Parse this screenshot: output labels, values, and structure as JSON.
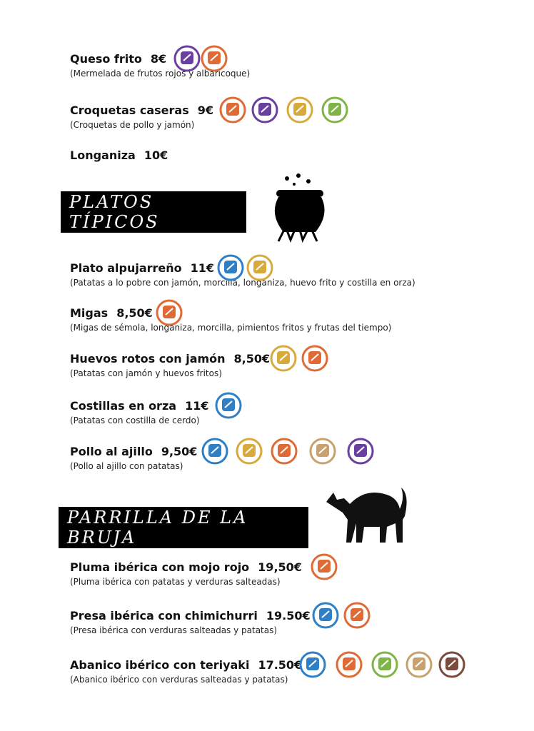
{
  "menu_top": [
    {
      "name": "Queso frito",
      "price": "8€",
      "description": "(Mermelada de frutos rojos y albaricoque)"
    },
    {
      "name": "Croquetas caseras",
      "price": "9€",
      "description": "(Croquetas de pollo y jamón)"
    },
    {
      "name": "Longaniza",
      "price": "10€"
    }
  ],
  "sections": [
    {
      "title": "PLATOS TÍPICOS",
      "items": [
        {
          "name": "Plato alpujarreño",
          "price": "11€",
          "description": "(Patatas a lo pobre con jamón, morcilla, longaniza, huevo frito y costilla en orza)"
        },
        {
          "name": "Migas",
          "price": "8,50€",
          "description": "(Migas de sémola, longaniza, morcilla, pimientos fritos y frutas del tiempo)"
        },
        {
          "name": "Huevos rotos con jamón",
          "price": "8,50€",
          "description": "(Patatas con jamón y huevos fritos)"
        },
        {
          "name": "Costillas en orza",
          "price": "11€",
          "description": "(Patatas con costilla de cerdo)"
        },
        {
          "name": "Pollo al ajillo",
          "price": "9,50€",
          "description": "(Pollo al ajillo con patatas)"
        }
      ]
    },
    {
      "title": "PARRILLA DE LA BRUJA",
      "items": [
        {
          "name": "Pluma ibérica con mojo rojo",
          "price": "19,50€",
          "description": "(Pluma ibérica con patatas y verduras salteadas)"
        },
        {
          "name": "Presa ibérica con chimichurri",
          "price": "19.50€",
          "description": "(Presa ibérica con verduras salteadas y patatas)"
        },
        {
          "name": "Abanico ibérico con teriyaki",
          "price": "17.50€",
          "description": "(Abanico ibérico con verduras salteadas y patatas)"
        }
      ]
    }
  ]
}
